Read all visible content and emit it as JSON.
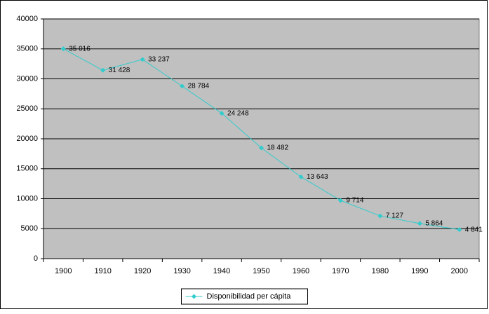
{
  "chart_data": {
    "type": "line",
    "categories": [
      "1900",
      "1910",
      "1920",
      "1930",
      "1940",
      "1950",
      "1960",
      "1970",
      "1980",
      "1990",
      "2000"
    ],
    "series": [
      {
        "name": "Disponibilidad per cápita",
        "color": "#33cccc",
        "values": [
          35016,
          31428,
          33237,
          28784,
          24248,
          18482,
          13643,
          9714,
          7127,
          5864,
          4841
        ],
        "value_labels": [
          "35 016",
          "31 428",
          "33 237",
          "28 784",
          "24 248",
          "18 482",
          "13 643",
          "9 714",
          "7 127",
          "5 864",
          "4 841"
        ]
      }
    ],
    "ylim": [
      0,
      40000
    ],
    "yticks": [
      0,
      5000,
      10000,
      15000,
      20000,
      25000,
      30000,
      35000,
      40000
    ],
    "grid": true,
    "legend": "bottom"
  }
}
